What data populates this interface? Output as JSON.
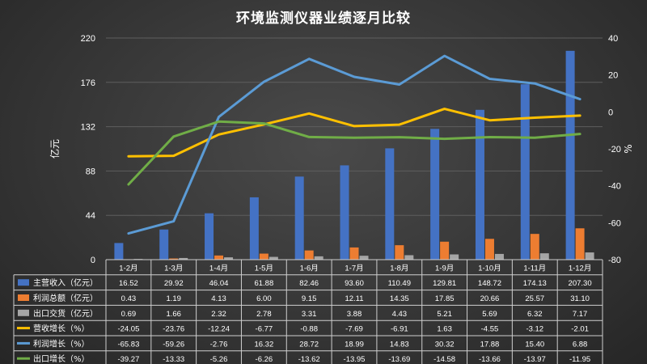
{
  "title": "环境监测仪器业绩逐月比较",
  "chart_data": {
    "type": "bar",
    "title": "环境监测仪器业绩逐月比较",
    "categories": [
      "1-2月",
      "1-3月",
      "1-4月",
      "1-5月",
      "1-6月",
      "1-7月",
      "1-8月",
      "1-9月",
      "1-10月",
      "1-11月",
      "1-12月"
    ],
    "ylabel": "亿元",
    "y2label": "%",
    "ylim": [
      0,
      220
    ],
    "yticks": [
      0,
      44,
      88,
      132,
      176,
      220
    ],
    "y2lim": [
      -80,
      40
    ],
    "y2ticks": [
      40,
      20,
      0,
      -20,
      -40,
      -60,
      -80
    ],
    "series": [
      {
        "name": "主营收入（亿元）",
        "type": "bar",
        "axis": "left",
        "color": "#4472c4",
        "labels": [
          "16.52",
          "29.92",
          "46.04",
          "61.88",
          "82.46",
          "93.60",
          "110.49",
          "129.81",
          "148.72",
          "174.13",
          "207.30"
        ],
        "values": [
          16.52,
          29.92,
          46.04,
          61.88,
          82.46,
          93.6,
          110.49,
          129.81,
          148.72,
          174.13,
          207.3
        ]
      },
      {
        "name": "利润总额（亿元）",
        "type": "bar",
        "axis": "left",
        "color": "#ed7d31",
        "labels": [
          "0.43",
          "1.19",
          "4.13",
          "6.00",
          "9.15",
          "12.11",
          "14.35",
          "17.85",
          "20.66",
          "25.57",
          "31.10"
        ],
        "values": [
          0.43,
          1.19,
          4.13,
          6.0,
          9.15,
          12.11,
          14.35,
          17.85,
          20.66,
          25.57,
          31.1
        ]
      },
      {
        "name": "出口交货（亿元）",
        "type": "bar",
        "axis": "left",
        "color": "#a5a5a5",
        "labels": [
          "0.69",
          "1.66",
          "2.32",
          "2.78",
          "3.31",
          "3.88",
          "4.43",
          "5.21",
          "5.69",
          "6.32",
          "7.17"
        ],
        "values": [
          0.69,
          1.66,
          2.32,
          2.78,
          3.31,
          3.88,
          4.43,
          5.21,
          5.69,
          6.32,
          7.17
        ]
      },
      {
        "name": "营收增长（%）",
        "type": "line",
        "axis": "right",
        "color": "#ffc000",
        "labels": [
          "-24.05",
          "-23.76",
          "-12.24",
          "-6.77",
          "-0.88",
          "-7.69",
          "-6.91",
          "1.63",
          "-4.55",
          "-3.12",
          "-2.01"
        ],
        "values": [
          -24.05,
          -23.76,
          -12.24,
          -6.77,
          -0.88,
          -7.69,
          -6.91,
          1.63,
          -4.55,
          -3.12,
          -2.01
        ]
      },
      {
        "name": "利润增长（%）",
        "type": "line",
        "axis": "right",
        "color": "#5b9bd5",
        "labels": [
          "-65.83",
          "-59.26",
          "-2.76",
          "16.32",
          "28.72",
          "18.99",
          "14.83",
          "30.32",
          "17.88",
          "15.40",
          "6.88"
        ],
        "values": [
          -65.83,
          -59.26,
          -2.76,
          16.32,
          28.72,
          18.99,
          14.83,
          30.32,
          17.88,
          15.4,
          6.88
        ]
      },
      {
        "name": "出口增长（%）",
        "type": "line",
        "axis": "right",
        "color": "#70ad47",
        "labels": [
          "-39.27",
          "-13.33",
          "-5.26",
          "-6.26",
          "-13.62",
          "-13.95",
          "-13.69",
          "-14.58",
          "-13.66",
          "-13.97",
          "-11.95"
        ],
        "values": [
          -39.27,
          -13.33,
          -5.26,
          -6.26,
          -13.62,
          -13.95,
          -13.69,
          -14.58,
          -13.66,
          -13.97,
          -11.95
        ]
      }
    ],
    "legend": "data-table"
  }
}
